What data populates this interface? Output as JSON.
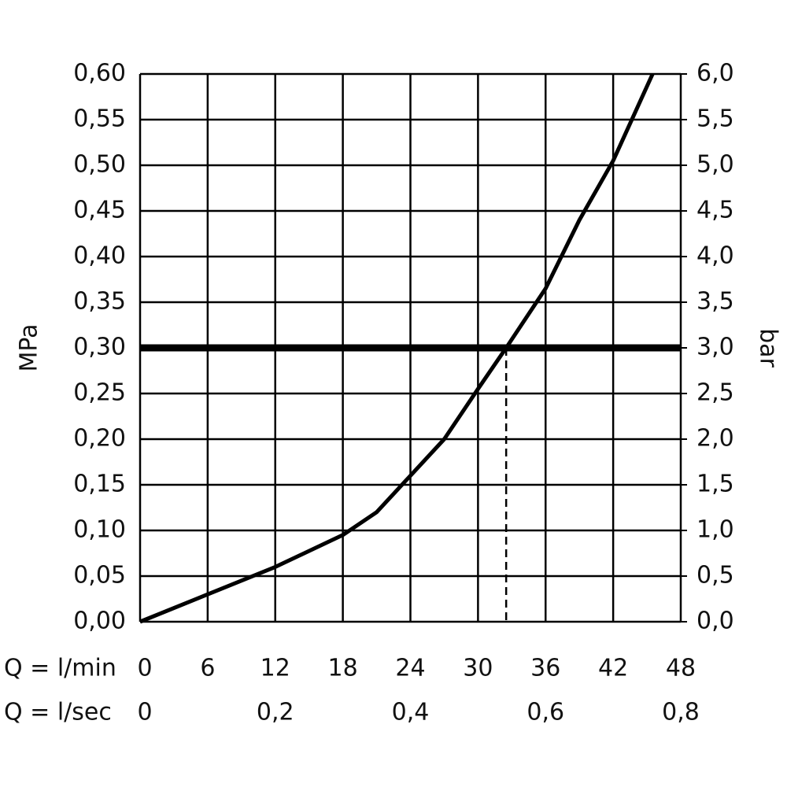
{
  "chart_data": {
    "type": "line",
    "ylabel": "MPa",
    "y2label": "bar",
    "x_row_labels": [
      "Q = l/min",
      "Q = l/sec"
    ],
    "x": [
      0,
      6,
      12,
      18,
      21,
      24,
      27,
      30,
      32.5,
      36,
      39,
      42,
      45.5
    ],
    "series": [
      {
        "color": "#000000",
        "values": [
          0,
          0.03,
          0.06,
          0.095,
          0.12,
          0.16,
          0.2,
          0.255,
          0.3,
          0.365,
          0.44,
          0.505,
          0.6
        ]
      }
    ],
    "xlim": [
      0,
      48
    ],
    "xticks": [
      0,
      6,
      12,
      18,
      24,
      30,
      36,
      42,
      48
    ],
    "x2lim": [
      0,
      0.8
    ],
    "x2ticks": [
      0,
      {
        "value": 0.2,
        "label": "0,2"
      },
      {
        "value": 0.4,
        "label": "0,4"
      },
      {
        "value": 0.6,
        "label": "0,6"
      },
      {
        "value": 0.8,
        "label": "0,8"
      }
    ],
    "ylim": [
      0,
      0.6
    ],
    "yticks": [
      {
        "value": 0,
        "label": "0,00"
      },
      {
        "value": 0.05,
        "label": "0,05"
      },
      {
        "value": 0.1,
        "label": "0,10"
      },
      {
        "value": 0.15,
        "label": "0,15"
      },
      {
        "value": 0.2,
        "label": "0,20"
      },
      {
        "value": 0.25,
        "label": "0,25"
      },
      {
        "value": 0.3,
        "label": "0,30"
      },
      {
        "value": 0.35,
        "label": "0,35"
      },
      {
        "value": 0.4,
        "label": "0,40"
      },
      {
        "value": 0.45,
        "label": "0,45"
      },
      {
        "value": 0.5,
        "label": "0,50"
      },
      {
        "value": 0.55,
        "label": "0,55"
      },
      {
        "value": 0.6,
        "label": "0,60"
      }
    ],
    "y2lim": [
      0,
      6
    ],
    "y2ticks": [
      {
        "value": 0,
        "label": "0,0"
      },
      {
        "value": 0.5,
        "label": "0,5"
      },
      {
        "value": 1,
        "label": "1,0"
      },
      {
        "value": 1.5,
        "label": "1,5"
      },
      {
        "value": 2,
        "label": "2,0"
      },
      {
        "value": 2.5,
        "label": "2,5"
      },
      {
        "value": 3,
        "label": "3,0"
      },
      {
        "value": 3.5,
        "label": "3,5"
      },
      {
        "value": 4,
        "label": "4,0"
      },
      {
        "value": 4.5,
        "label": "4,5"
      },
      {
        "value": 5,
        "label": "5,0"
      },
      {
        "value": 5.5,
        "label": "5,5"
      },
      {
        "value": 6,
        "label": "6,0"
      }
    ],
    "reference_y": 0.3,
    "reference_x": 32.5,
    "grid": true
  }
}
